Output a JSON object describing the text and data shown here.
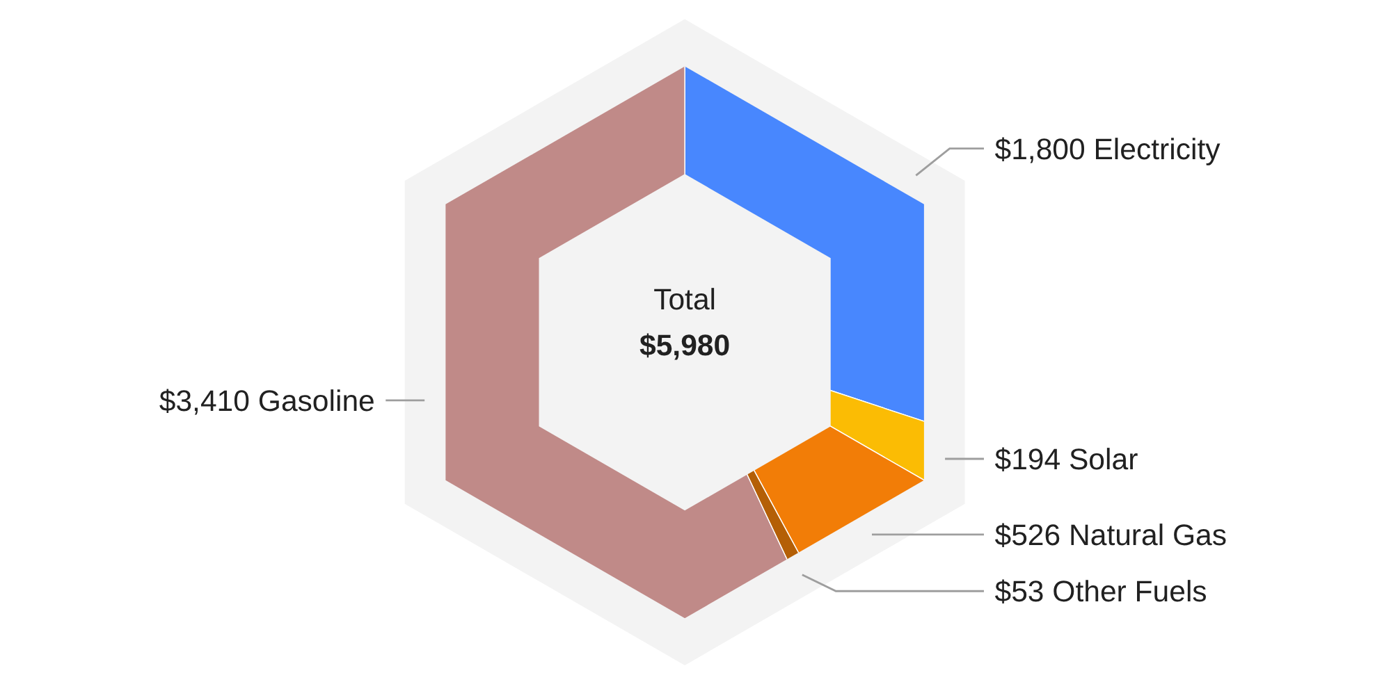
{
  "chart_data": {
    "type": "donut",
    "categories": [
      "Electricity",
      "Solar",
      "Natural Gas",
      "Other Fuels",
      "Gasoline"
    ],
    "values": [
      1800,
      194,
      526,
      53,
      3410
    ],
    "value_labels": [
      "$1,800",
      "$194",
      "$526",
      "$53",
      "$3,410"
    ],
    "colors": [
      "#4887fe",
      "#fbbc04",
      "#f27d07",
      "#b45f06",
      "#c08a88"
    ],
    "annotations": [
      "Total",
      "$5,980"
    ]
  }
}
